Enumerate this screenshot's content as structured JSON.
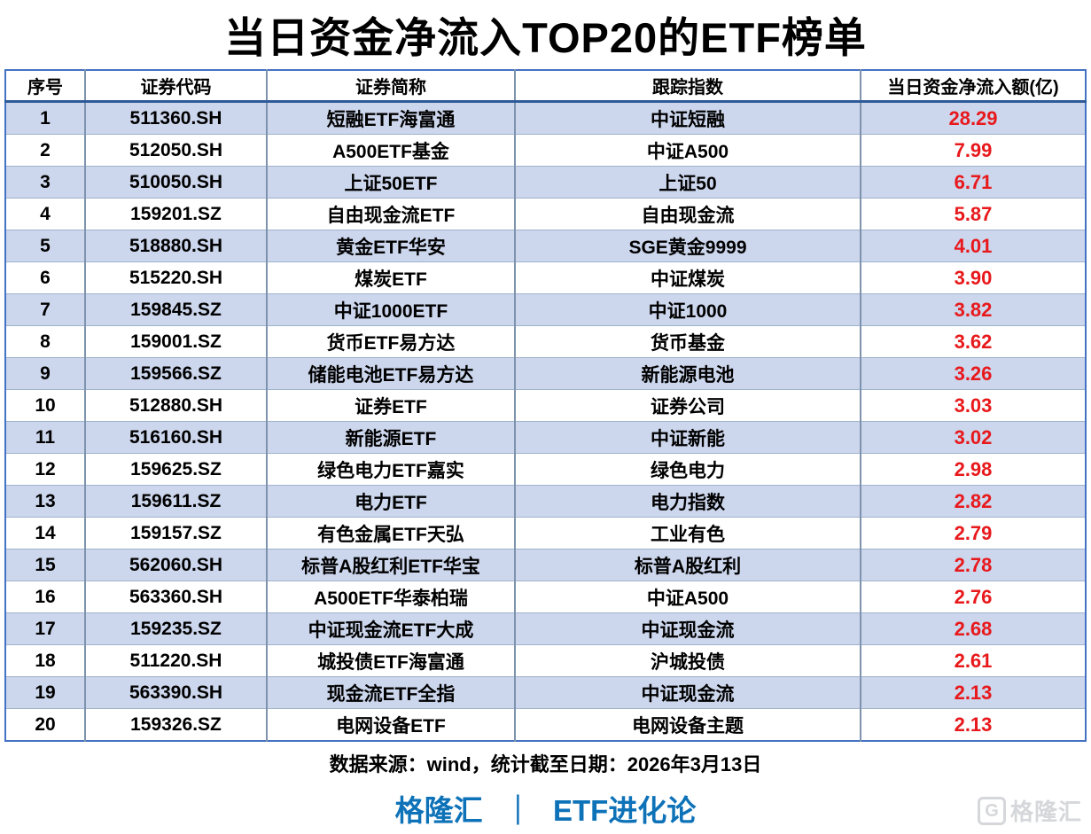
{
  "title": "当日资金净流入TOP20的ETF榜单",
  "chart_data": {
    "type": "table",
    "title": "当日资金净流入TOP20的ETF榜单",
    "columns": [
      "序号",
      "证券代码",
      "证券简称",
      "跟踪指数",
      "当日资金净流入额(亿)"
    ],
    "rows": [
      [
        "1",
        "511360.SH",
        "短融ETF海富通",
        "中证短融",
        "28.29"
      ],
      [
        "2",
        "512050.SH",
        "A500ETF基金",
        "中证A500",
        "7.99"
      ],
      [
        "3",
        "510050.SH",
        "上证50ETF",
        "上证50",
        "6.71"
      ],
      [
        "4",
        "159201.SZ",
        "自由现金流ETF",
        "自由现金流",
        "5.87"
      ],
      [
        "5",
        "518880.SH",
        "黄金ETF华安",
        "SGE黄金9999",
        "4.01"
      ],
      [
        "6",
        "515220.SH",
        "煤炭ETF",
        "中证煤炭",
        "3.90"
      ],
      [
        "7",
        "159845.SZ",
        "中证1000ETF",
        "中证1000",
        "3.82"
      ],
      [
        "8",
        "159001.SZ",
        "货币ETF易方达",
        "货币基金",
        "3.62"
      ],
      [
        "9",
        "159566.SZ",
        "储能电池ETF易方达",
        "新能源电池",
        "3.26"
      ],
      [
        "10",
        "512880.SH",
        "证券ETF",
        "证券公司",
        "3.03"
      ],
      [
        "11",
        "516160.SH",
        "新能源ETF",
        "中证新能",
        "3.02"
      ],
      [
        "12",
        "159625.SZ",
        "绿色电力ETF嘉实",
        "绿色电力",
        "2.98"
      ],
      [
        "13",
        "159611.SZ",
        "电力ETF",
        "电力指数",
        "2.82"
      ],
      [
        "14",
        "159157.SZ",
        "有色金属ETF天弘",
        "工业有色",
        "2.79"
      ],
      [
        "15",
        "562060.SH",
        "标普A股红利ETF华宝",
        "标普A股红利",
        "2.78"
      ],
      [
        "16",
        "563360.SH",
        "A500ETF华泰柏瑞",
        "中证A500",
        "2.76"
      ],
      [
        "17",
        "159235.SZ",
        "中证现金流ETF大成",
        "中证现金流",
        "2.68"
      ],
      [
        "18",
        "511220.SH",
        "城投债ETF海富通",
        "沪城投债",
        "2.61"
      ],
      [
        "19",
        "563390.SH",
        "现金流ETF全指",
        "中证现金流",
        "2.13"
      ],
      [
        "20",
        "159326.SZ",
        "电网设备ETF",
        "电网设备主题",
        "2.13"
      ]
    ],
    "value_column_color": "#e8191c",
    "striped_row_color": "#ccd6ec"
  },
  "footer": {
    "source": "数据来源：wind，统计截至日期：2026年3月13日"
  },
  "branding": {
    "left": "格隆汇",
    "separator": "｜",
    "right": "ETF进化论",
    "color": "#0e72b8",
    "watermark_icon": "G",
    "watermark": "格隆汇"
  }
}
